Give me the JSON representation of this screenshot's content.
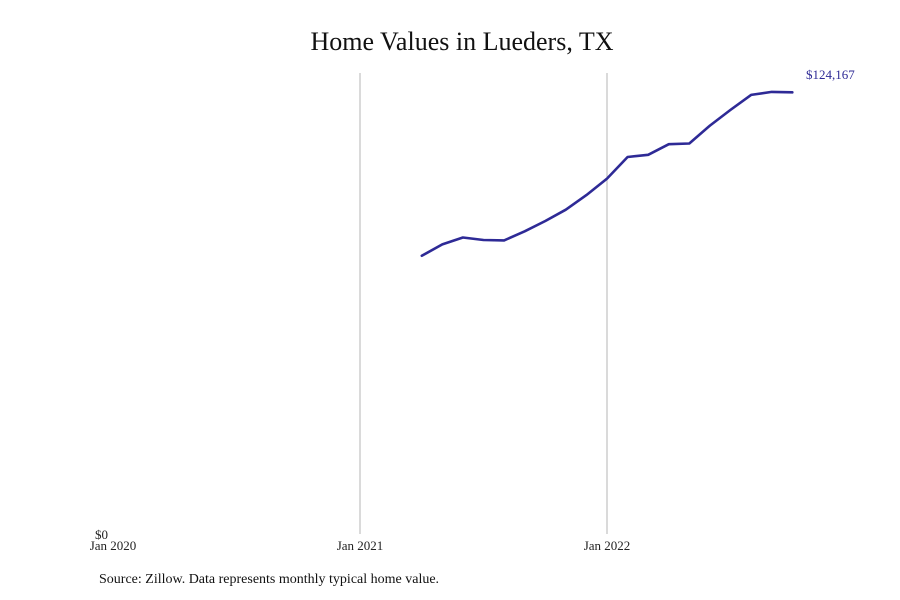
{
  "chart_data": {
    "type": "line",
    "title": "Home Values in Lueders, TX",
    "xlabel": "",
    "ylabel": "",
    "x_ticks": [
      "Jan 2020",
      "Jan 2021",
      "Jan 2022"
    ],
    "y_ticks": [
      "$0"
    ],
    "ylim": [
      0,
      124167
    ],
    "grid": "vertical",
    "series": [
      {
        "color": "#2e2a96",
        "end_label": "$124,167",
        "x": [
          "2021-04",
          "2021-05",
          "2021-06",
          "2021-07",
          "2021-08",
          "2021-09",
          "2021-10",
          "2021-11",
          "2021-12",
          "2022-01",
          "2022-02",
          "2022-03",
          "2022-04",
          "2022-05",
          "2022-06",
          "2022-07",
          "2022-08",
          "2022-09",
          "2022-10"
        ],
        "values": [
          76100,
          79200,
          81100,
          80400,
          80300,
          82800,
          85600,
          88700,
          92700,
          97200,
          103100,
          103700,
          106600,
          106800,
          111700,
          116000,
          120100,
          120900,
          120800
        ]
      }
    ]
  },
  "source_note": "Source: Zillow. Data represents monthly typical home value."
}
